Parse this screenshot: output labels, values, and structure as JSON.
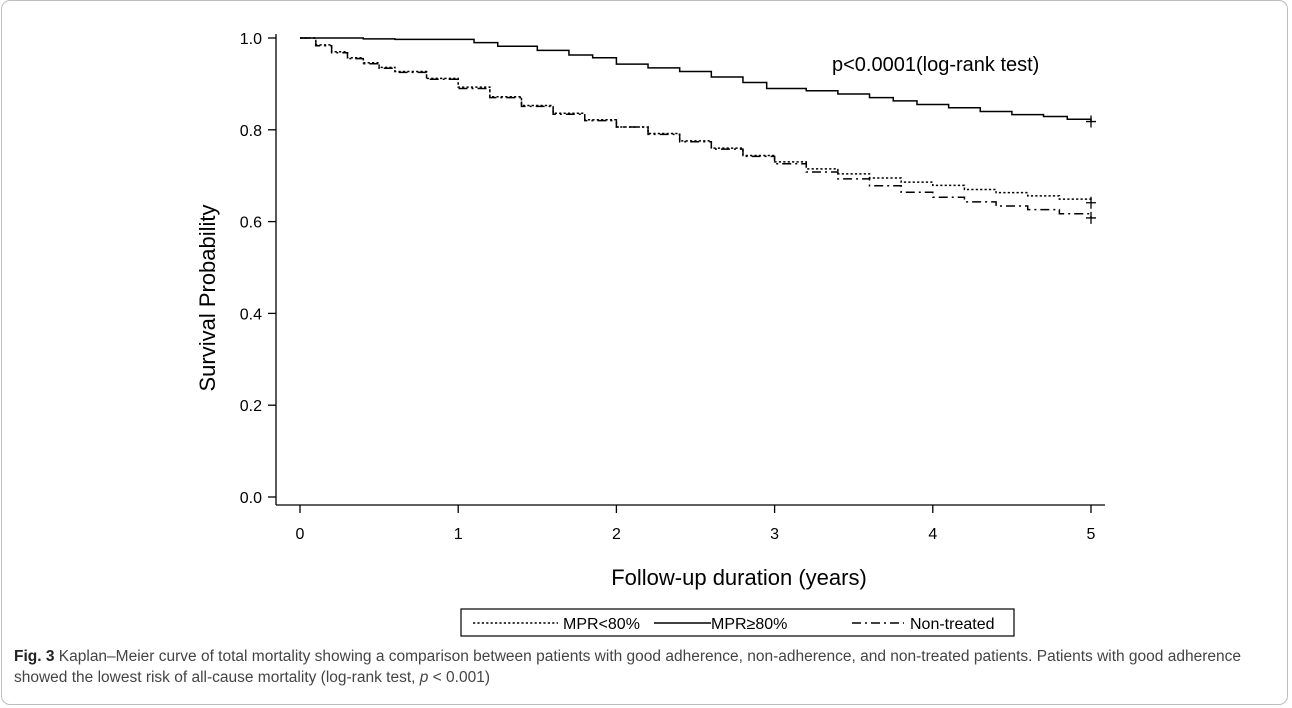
{
  "chart_data": {
    "type": "line",
    "subtype": "kaplan-meier step curves",
    "xlabel": "Follow-up duration (years)",
    "ylabel": "Survival Probability",
    "xlim": [
      0,
      5
    ],
    "ylim": [
      0,
      1
    ],
    "xticks": [
      "0",
      "1",
      "2",
      "3",
      "4",
      "5"
    ],
    "yticks": [
      "0.0",
      "0.2",
      "0.4",
      "0.6",
      "0.8",
      "1.0"
    ],
    "annotation": "p<0.0001(log-rank test)",
    "grid": false,
    "legend_position": "bottom-center",
    "series": [
      {
        "name": "MPR<80%",
        "line_style": "dotted",
        "x": [
          0,
          0.1,
          0.2,
          0.3,
          0.4,
          0.5,
          0.6,
          0.8,
          1.0,
          1.2,
          1.4,
          1.6,
          1.8,
          2.0,
          2.2,
          2.4,
          2.6,
          2.8,
          3.0,
          3.2,
          3.4,
          3.6,
          3.8,
          4.0,
          4.2,
          4.4,
          4.6,
          4.8,
          5.0
        ],
        "y": [
          1.0,
          0.985,
          0.97,
          0.957,
          0.946,
          0.936,
          0.927,
          0.912,
          0.893,
          0.872,
          0.853,
          0.836,
          0.822,
          0.806,
          0.792,
          0.776,
          0.76,
          0.744,
          0.73,
          0.715,
          0.704,
          0.695,
          0.686,
          0.679,
          0.67,
          0.663,
          0.656,
          0.649,
          0.641
        ]
      },
      {
        "name": "MPR≥80%",
        "line_style": "solid",
        "x": [
          0,
          0.2,
          0.4,
          0.6,
          0.8,
          1.0,
          1.1,
          1.25,
          1.5,
          1.7,
          1.85,
          2.0,
          2.2,
          2.4,
          2.6,
          2.8,
          2.95,
          3.2,
          3.4,
          3.6,
          3.75,
          3.9,
          4.1,
          4.3,
          4.5,
          4.7,
          4.85,
          5.0
        ],
        "y": [
          1.0,
          1.0,
          0.998,
          0.997,
          0.997,
          0.997,
          0.99,
          0.982,
          0.973,
          0.963,
          0.957,
          0.943,
          0.935,
          0.927,
          0.915,
          0.903,
          0.89,
          0.885,
          0.878,
          0.87,
          0.863,
          0.855,
          0.848,
          0.84,
          0.833,
          0.829,
          0.823,
          0.818
        ]
      },
      {
        "name": "Non-treated",
        "line_style": "dash-dot",
        "x": [
          0,
          0.1,
          0.2,
          0.3,
          0.4,
          0.5,
          0.6,
          0.8,
          1.0,
          1.2,
          1.4,
          1.6,
          1.8,
          2.0,
          2.2,
          2.4,
          2.6,
          2.8,
          3.0,
          3.2,
          3.4,
          3.6,
          3.8,
          4.0,
          4.2,
          4.4,
          4.6,
          4.8,
          5.0
        ],
        "y": [
          1.0,
          0.983,
          0.968,
          0.955,
          0.944,
          0.934,
          0.925,
          0.91,
          0.89,
          0.87,
          0.851,
          0.834,
          0.82,
          0.806,
          0.79,
          0.774,
          0.758,
          0.742,
          0.726,
          0.708,
          0.693,
          0.678,
          0.664,
          0.653,
          0.643,
          0.634,
          0.626,
          0.617,
          0.608
        ]
      }
    ]
  },
  "caption": {
    "label": "Fig. 3",
    "text_before_p": " Kaplan–Meier curve of total mortality showing a comparison between patients with good adherence, non-adherence, and non-treated patients. Patients with good adherence showed the lowest risk of all-cause mortality (log-rank test, ",
    "p_symbol": "p",
    "text_after_p": " < 0.001)"
  }
}
